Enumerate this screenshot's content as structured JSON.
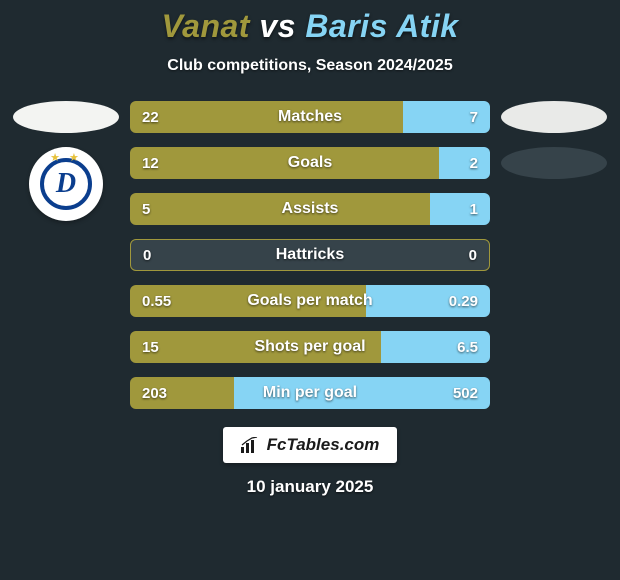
{
  "background_color": "#1f2a30",
  "title": {
    "player1": "Vanat",
    "vs": "vs",
    "player2": "Baris Atik",
    "color_player1": "#a0983c",
    "color_vs": "#ffffff",
    "color_player2": "#86d4f4"
  },
  "subtitle": "Club competitions, Season 2024/2025",
  "left_side": {
    "badge_color": "#f3f4f2",
    "club_logo": {
      "letter": "D",
      "star_color": "#e7c23c",
      "ring_color": "#0b3e8e"
    }
  },
  "right_side": {
    "badge1_color": "#e9eae8",
    "badge2_color": "#36434a"
  },
  "bars": {
    "left_color": "#a0983c",
    "right_color": "#86d4f4",
    "neutral_color": "#36434a",
    "text_color": "#ffffff",
    "rows": [
      {
        "label": "Matches",
        "left_val": "22",
        "right_val": "7",
        "left_pct": 75.9,
        "right_pct": 24.1
      },
      {
        "label": "Goals",
        "left_val": "12",
        "right_val": "2",
        "left_pct": 85.7,
        "right_pct": 14.3
      },
      {
        "label": "Assists",
        "left_val": "5",
        "right_val": "1",
        "left_pct": 83.3,
        "right_pct": 16.7
      },
      {
        "label": "Hattricks",
        "left_val": "0",
        "right_val": "0",
        "left_pct": 0,
        "right_pct": 0,
        "neutral": true
      },
      {
        "label": "Goals per match",
        "left_val": "0.55",
        "right_val": "0.29",
        "left_pct": 65.5,
        "right_pct": 34.5
      },
      {
        "label": "Shots per goal",
        "left_val": "15",
        "right_val": "6.5",
        "left_pct": 69.8,
        "right_pct": 30.2
      },
      {
        "label": "Min per goal",
        "left_val": "203",
        "right_val": "502",
        "left_pct": 28.8,
        "right_pct": 71.2
      }
    ]
  },
  "brand": {
    "text": "FcTables.com",
    "text_color": "#1a1a1a",
    "bg_color": "#ffffff"
  },
  "date": "10 january 2025"
}
